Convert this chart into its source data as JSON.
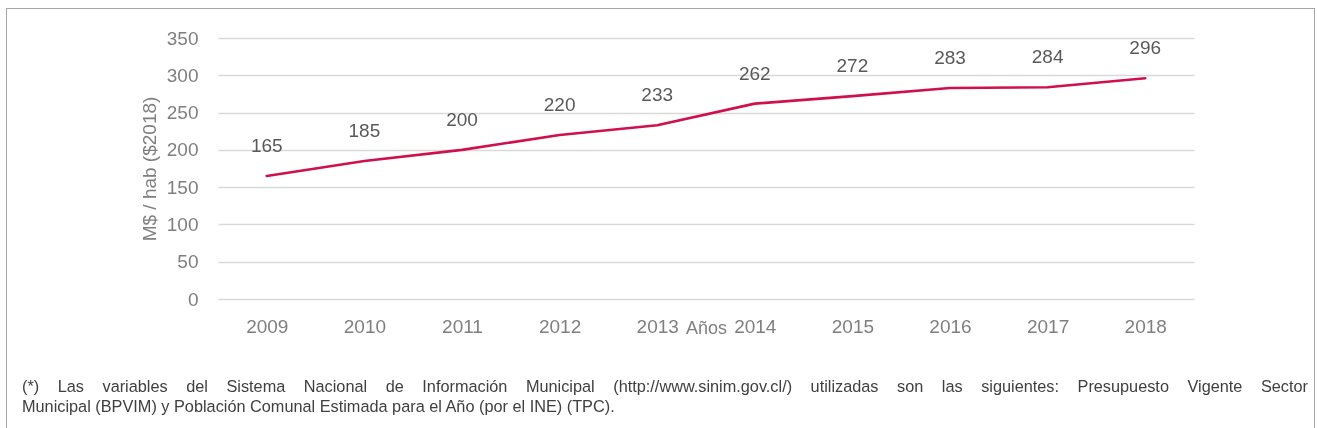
{
  "chart_data": {
    "type": "line",
    "categories": [
      "2009",
      "2010",
      "2011",
      "2012",
      "2013",
      "2014",
      "2015",
      "2016",
      "2017",
      "2018"
    ],
    "series": [
      {
        "color": "#d0104c",
        "values": [
          165,
          185,
          200,
          220,
          233,
          262,
          272,
          283,
          284,
          296
        ]
      }
    ],
    "xlabel": "Años",
    "ylabel": "M$ / hab ($2018)",
    "ylim": [
      0,
      350
    ],
    "yticks": [
      0,
      50,
      100,
      150,
      200,
      250,
      300,
      350
    ],
    "grid": "y",
    "data_labels": true,
    "annotations": [
      "(*) Las variables del Sistema Nacional de Información Municipal (http://www.sinim.gov.cl/) utilizadas son las siguientes: Presupuesto Vigente Sector Municipal (BPVIM) y Población Comunal Estimada para el Año (por el INE) (TPC)."
    ]
  }
}
